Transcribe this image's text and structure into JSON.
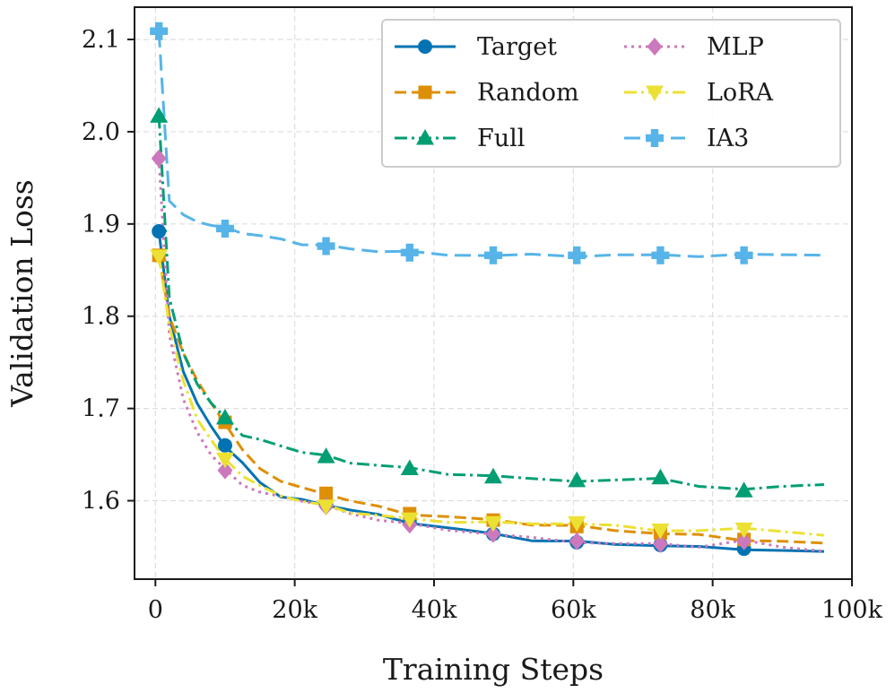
{
  "chart_data": {
    "type": "line",
    "title": "",
    "xlabel": "Training Steps",
    "ylabel": "Validation Loss",
    "xlim": [
      -3000,
      100000
    ],
    "ylim": [
      1.515,
      2.135
    ],
    "grid": true,
    "legend_position": "top-right",
    "x_ticks": [
      {
        "value": 0,
        "label": "0"
      },
      {
        "value": 20000,
        "label": "20k"
      },
      {
        "value": 40000,
        "label": "40k"
      },
      {
        "value": 60000,
        "label": "60k"
      },
      {
        "value": 80000,
        "label": "80k"
      },
      {
        "value": 100000,
        "label": "100k"
      }
    ],
    "y_ticks": [
      {
        "value": 1.6,
        "label": "1.6"
      },
      {
        "value": 1.7,
        "label": "1.7"
      },
      {
        "value": 1.8,
        "label": "1.8"
      },
      {
        "value": 1.9,
        "label": "1.9"
      },
      {
        "value": 2.0,
        "label": "2.0"
      },
      {
        "value": 2.1,
        "label": "2.1"
      }
    ],
    "x": [
      500,
      2000,
      4000,
      6000,
      8000,
      10000,
      12500,
      15000,
      18000,
      21000,
      24500,
      28000,
      32000,
      36500,
      42000,
      48500,
      54000,
      60500,
      66000,
      72500,
      78000,
      84500,
      90000,
      96000
    ],
    "series": [
      {
        "name": "Target",
        "color": "#0173b2",
        "dash": "solid",
        "marker": "circle",
        "values": [
          1.892,
          1.8,
          1.74,
          1.705,
          1.68,
          1.66,
          1.64,
          1.62,
          1.605,
          1.6,
          1.596,
          1.59,
          1.584,
          1.577,
          1.57,
          1.564,
          1.558,
          1.555,
          1.553,
          1.552,
          1.549,
          1.548,
          1.546,
          1.544
        ]
      },
      {
        "name": "Random",
        "color": "#de8f05",
        "dash": "dashed",
        "marker": "square",
        "values": [
          1.866,
          1.8,
          1.76,
          1.73,
          1.705,
          1.685,
          1.654,
          1.635,
          1.622,
          1.613,
          1.608,
          1.6,
          1.593,
          1.586,
          1.582,
          1.579,
          1.575,
          1.572,
          1.568,
          1.565,
          1.562,
          1.558,
          1.556,
          1.553
        ]
      },
      {
        "name": "Full",
        "color": "#029e73",
        "dash": "dashdot",
        "marker": "triangle-up",
        "values": [
          2.017,
          1.82,
          1.76,
          1.728,
          1.705,
          1.69,
          1.672,
          1.665,
          1.66,
          1.653,
          1.648,
          1.642,
          1.638,
          1.635,
          1.63,
          1.626,
          1.624,
          1.622,
          1.621,
          1.625,
          1.616,
          1.611,
          1.617,
          1.617
        ]
      },
      {
        "name": "MLP",
        "color": "#cc78bc",
        "dash": "dotted",
        "marker": "diamond",
        "values": [
          1.971,
          1.78,
          1.71,
          1.675,
          1.65,
          1.633,
          1.618,
          1.609,
          1.604,
          1.601,
          1.594,
          1.586,
          1.58,
          1.574,
          1.569,
          1.564,
          1.559,
          1.556,
          1.553,
          1.553,
          1.551,
          1.556,
          1.55,
          1.546
        ]
      },
      {
        "name": "LoRA",
        "color": "#ece133",
        "dash": "dashdot",
        "marker": "triangle-down",
        "values": [
          1.865,
          1.79,
          1.73,
          1.69,
          1.665,
          1.645,
          1.628,
          1.615,
          1.606,
          1.6,
          1.594,
          1.588,
          1.584,
          1.58,
          1.578,
          1.576,
          1.575,
          1.576,
          1.572,
          1.568,
          1.568,
          1.569,
          1.568,
          1.562
        ]
      },
      {
        "name": "IA3",
        "color": "#56b4e9",
        "dash": "longdash",
        "marker": "plus-square",
        "values": [
          2.109,
          1.925,
          1.91,
          1.903,
          1.899,
          1.895,
          1.891,
          1.887,
          1.883,
          1.879,
          1.876,
          1.873,
          1.871,
          1.869,
          1.867,
          1.866,
          1.866,
          1.866,
          1.866,
          1.866,
          1.866,
          1.866,
          1.867,
          1.867
        ]
      }
    ]
  }
}
